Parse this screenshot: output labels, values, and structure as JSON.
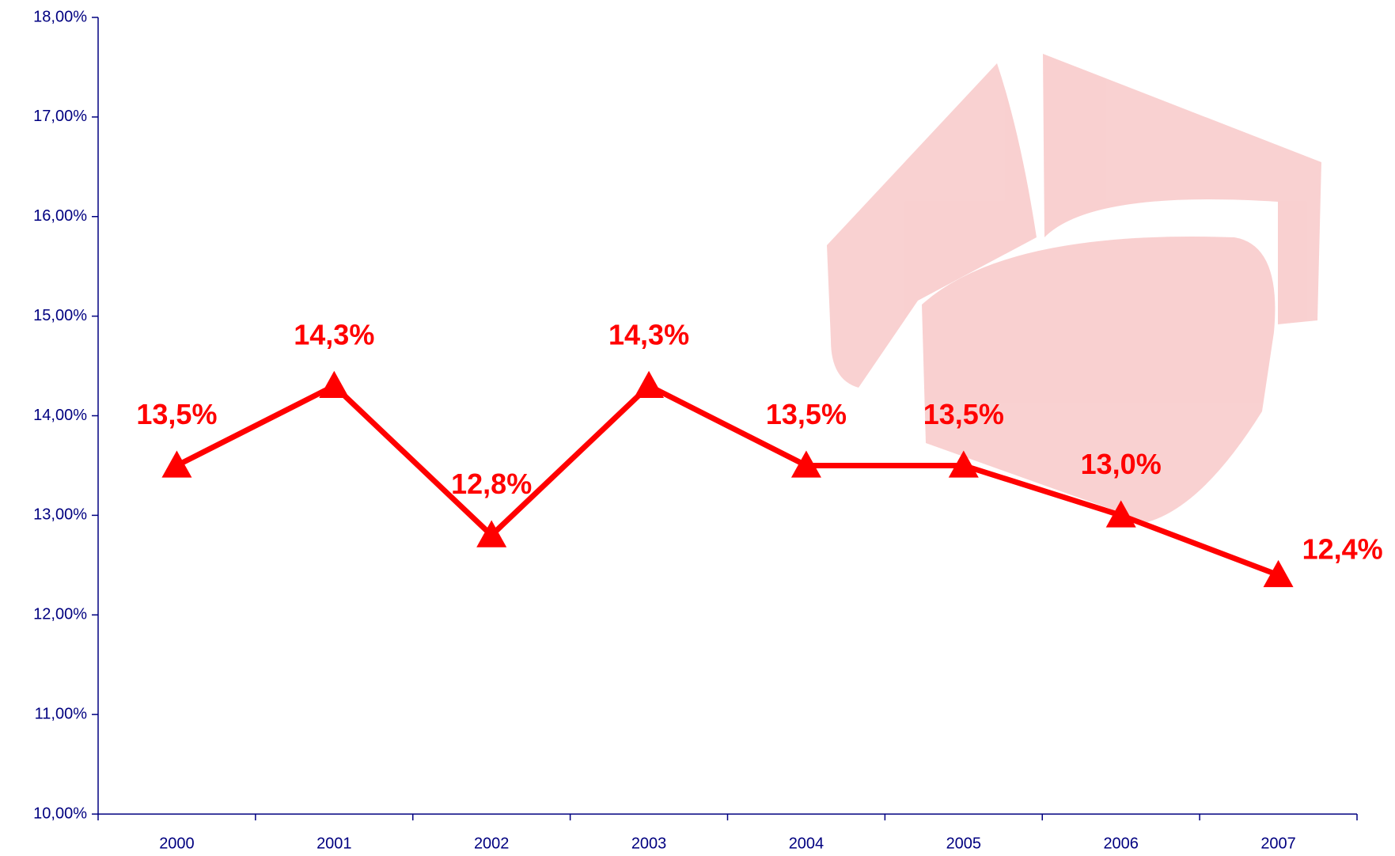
{
  "chart_data": {
    "type": "line",
    "categories": [
      "2000",
      "2001",
      "2002",
      "2003",
      "2004",
      "2005",
      "2006",
      "2007"
    ],
    "values": [
      13.5,
      14.3,
      12.8,
      14.3,
      13.5,
      13.5,
      13.0,
      12.4
    ],
    "value_labels": [
      "13,5%",
      "14,3%",
      "12,8%",
      "14,3%",
      "13,5%",
      "13,5%",
      "13,0%",
      "12,4%"
    ],
    "color": "#ff0000",
    "ylim": [
      10,
      18
    ],
    "yticks": [
      {
        "value": 10,
        "label": "10,00%"
      },
      {
        "value": 11,
        "label": "11,00%"
      },
      {
        "value": 12,
        "label": "12,00%"
      },
      {
        "value": 13,
        "label": "13,00%"
      },
      {
        "value": 14,
        "label": "14,00%"
      },
      {
        "value": 15,
        "label": "15,00%"
      },
      {
        "value": 16,
        "label": "16,00%"
      },
      {
        "value": 17,
        "label": "17,00%"
      },
      {
        "value": 18,
        "label": "18,00%"
      }
    ],
    "grid": false
  }
}
